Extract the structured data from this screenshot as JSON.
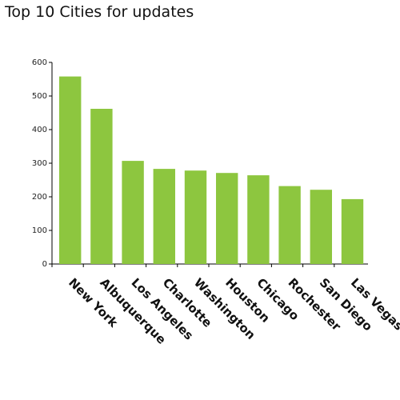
{
  "chart_data": {
    "type": "bar",
    "title": "Top 10 Cities for updates",
    "categories": [
      "New York",
      "Albuquerque",
      "Los Angeles",
      "Charlotte",
      "Washington",
      "Houston",
      "Chicago",
      "Rochester",
      "San Diego",
      "Las Vegas"
    ],
    "values": [
      558,
      462,
      307,
      283,
      278,
      271,
      264,
      232,
      221,
      193
    ],
    "ylim": [
      0,
      600
    ],
    "yticks": [
      "0",
      "100",
      "200",
      "300",
      "400",
      "500",
      "600"
    ],
    "xlabel": "",
    "ylabel": "",
    "grid": false,
    "legend": "none",
    "bar_color": "#8dc63f"
  }
}
